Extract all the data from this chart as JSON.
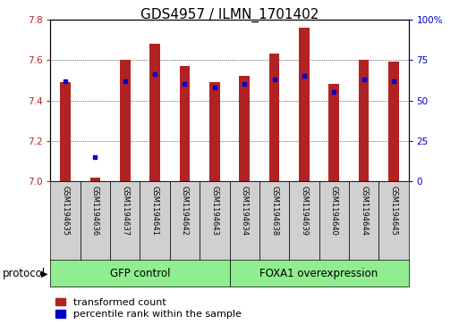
{
  "title": "GDS4957 / ILMN_1701402",
  "samples": [
    "GSM1194635",
    "GSM1194636",
    "GSM1194637",
    "GSM1194641",
    "GSM1194642",
    "GSM1194643",
    "GSM1194634",
    "GSM1194638",
    "GSM1194639",
    "GSM1194640",
    "GSM1194644",
    "GSM1194645"
  ],
  "transformed_counts": [
    7.49,
    7.02,
    7.6,
    7.68,
    7.57,
    7.49,
    7.52,
    7.63,
    7.76,
    7.48,
    7.6,
    7.59
  ],
  "percentile_ranks": [
    62,
    15,
    62,
    66,
    60,
    58,
    60,
    63,
    65,
    55,
    63,
    62
  ],
  "groups": [
    {
      "label": "GFP control",
      "start": 0,
      "end": 6,
      "color": "#90EE90"
    },
    {
      "label": "FOXA1 overexpression",
      "start": 6,
      "end": 12,
      "color": "#90EE90"
    }
  ],
  "ylim_left": [
    7.0,
    7.8
  ],
  "ylim_right": [
    0,
    100
  ],
  "yticks_left": [
    7.0,
    7.2,
    7.4,
    7.6,
    7.8
  ],
  "yticks_right": [
    0,
    25,
    50,
    75,
    100
  ],
  "bar_color": "#B22222",
  "dot_color": "#0000CC",
  "bar_width": 0.35,
  "title_fontsize": 11,
  "tick_fontsize": 7.5,
  "label_fontsize": 8,
  "legend_fontsize": 8,
  "group_label_fontsize": 8.5,
  "protocol_fontsize": 8.5,
  "background_color": "#ffffff",
  "grid_color": "#000000",
  "right_axis_color": "#0000CC",
  "left_axis_color": "#B22222",
  "group_box_color": "#d0d0d0",
  "sample_label_fontsize": 6
}
